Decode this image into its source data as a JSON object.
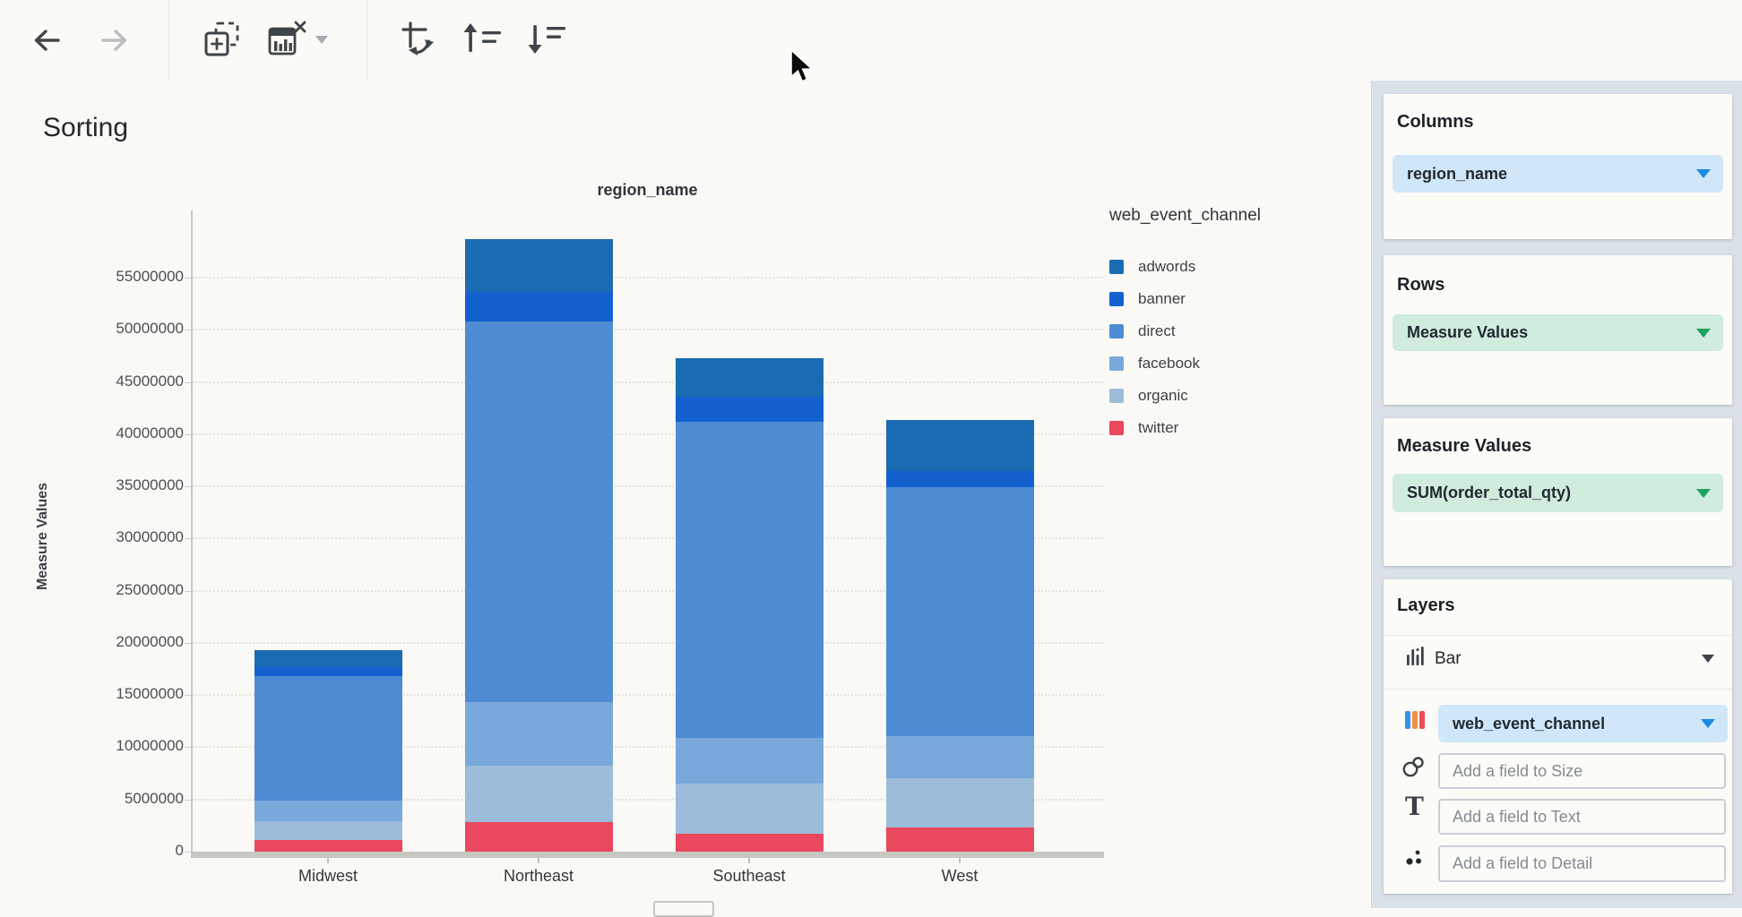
{
  "toolbar": {
    "icons": [
      "back-arrow",
      "forward-arrow",
      "add-visualization",
      "remove-visualization",
      "remove-visualization-menu-caret",
      "swap-axes",
      "sort-ascending",
      "sort-descending"
    ]
  },
  "main": {
    "page_title": "Sorting"
  },
  "chart_data": {
    "type": "bar",
    "stacked": true,
    "title": "region_name",
    "ylabel": "Measure Values",
    "legend_title": "web_event_channel",
    "legend_position": "right",
    "grid": true,
    "categories": [
      "Midwest",
      "Northeast",
      "Southeast",
      "West"
    ],
    "series": [
      {
        "name": "adwords",
        "color": "#1a6cb2",
        "values": [
          1600000,
          5100000,
          3700000,
          4900000
        ]
      },
      {
        "name": "banner",
        "color": "#1261cf",
        "values": [
          900000,
          2800000,
          2400000,
          1600000
        ]
      },
      {
        "name": "direct",
        "color": "#4e8cd4",
        "values": [
          11900000,
          36500000,
          30300000,
          23800000
        ]
      },
      {
        "name": "facebook",
        "color": "#79a8da",
        "values": [
          2000000,
          6100000,
          4400000,
          4100000
        ]
      },
      {
        "name": "organic",
        "color": "#9cbcda",
        "values": [
          1800000,
          5400000,
          4800000,
          4700000
        ]
      },
      {
        "name": "twitter",
        "color": "#e9485f",
        "values": [
          1100000,
          2800000,
          1700000,
          2300000
        ]
      }
    ],
    "totals": [
      19300000,
      58700000,
      47300000,
      41400000
    ],
    "y_ticks": [
      0,
      5000000,
      10000000,
      15000000,
      20000000,
      25000000,
      30000000,
      35000000,
      40000000,
      45000000,
      50000000,
      55000000
    ],
    "ylim": [
      0,
      59000000
    ],
    "stack_order_bottom_to_top": [
      "twitter",
      "organic",
      "facebook",
      "direct",
      "banner",
      "adwords"
    ]
  },
  "panel": {
    "columns_title": "Columns",
    "columns_field": "region_name",
    "rows_title": "Rows",
    "rows_field": "Measure Values",
    "measure_values_title": "Measure Values",
    "measure_values_field": "SUM(order_total_qty)",
    "layers_title": "Layers",
    "layer_type": "Bar",
    "layer_type_icon": "bar-chart-icon",
    "layer_color_field": "web_event_channel",
    "layer_color_icon": "color-bars-icon",
    "size_placeholder": "Add a field to Size",
    "text_placeholder": "Add a field to Text",
    "detail_placeholder": "Add a field to Detail"
  },
  "colors": {
    "pill_blue_bg": "#cfe7f8",
    "pill_green_bg": "#cfecdc",
    "caret_blue": "#1e88e5",
    "caret_green": "#21a15c",
    "panel_bg": "#dbe1e8",
    "card_bg": "#fbfbf7",
    "toolbar_icon": "#3f4449"
  }
}
